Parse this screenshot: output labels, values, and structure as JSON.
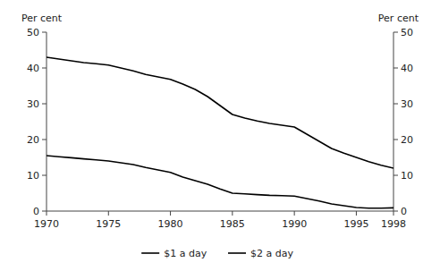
{
  "chart_data": {
    "type": "line",
    "x": [
      1970,
      1971,
      1972,
      1973,
      1974,
      1975,
      1976,
      1977,
      1978,
      1979,
      1980,
      1981,
      1982,
      1983,
      1984,
      1985,
      1986,
      1987,
      1988,
      1989,
      1990,
      1991,
      1992,
      1993,
      1994,
      1995,
      1996,
      1997,
      1998
    ],
    "series": [
      {
        "name": "$1 a day",
        "color": "#000000",
        "line_style": "solid",
        "values": [
          15.5,
          15.2,
          14.9,
          14.6,
          14.3,
          14.0,
          13.5,
          13.0,
          12.2,
          11.5,
          10.8,
          9.5,
          8.5,
          7.5,
          6.2,
          5.0,
          4.8,
          4.6,
          4.4,
          4.3,
          4.2,
          3.5,
          2.8,
          2.0,
          1.5,
          1.0,
          0.8,
          0.8,
          0.9
        ]
      },
      {
        "name": "$2 a day",
        "color": "#000000",
        "line_style": "solid",
        "values": [
          43.0,
          42.5,
          42.0,
          41.5,
          41.2,
          40.8,
          40.0,
          39.2,
          38.2,
          37.5,
          36.8,
          35.5,
          34.0,
          32.0,
          29.5,
          27.0,
          26.0,
          25.2,
          24.5,
          24.0,
          23.5,
          21.5,
          19.5,
          17.5,
          16.2,
          15.0,
          13.8,
          12.8,
          12.0
        ]
      }
    ],
    "xlim": [
      1970,
      1998
    ],
    "xticks": [
      1970,
      1975,
      1980,
      1985,
      1990,
      1995,
      1998
    ],
    "ylim": [
      0,
      50
    ],
    "yticks": [
      0,
      10,
      20,
      30,
      40,
      50
    ],
    "y2lim": [
      0,
      50
    ],
    "y2ticks": [
      0,
      10,
      20,
      30,
      40,
      50
    ],
    "ylabel": "Per cent",
    "y2label": "Per cent",
    "grid": false,
    "legend": "bottom"
  }
}
